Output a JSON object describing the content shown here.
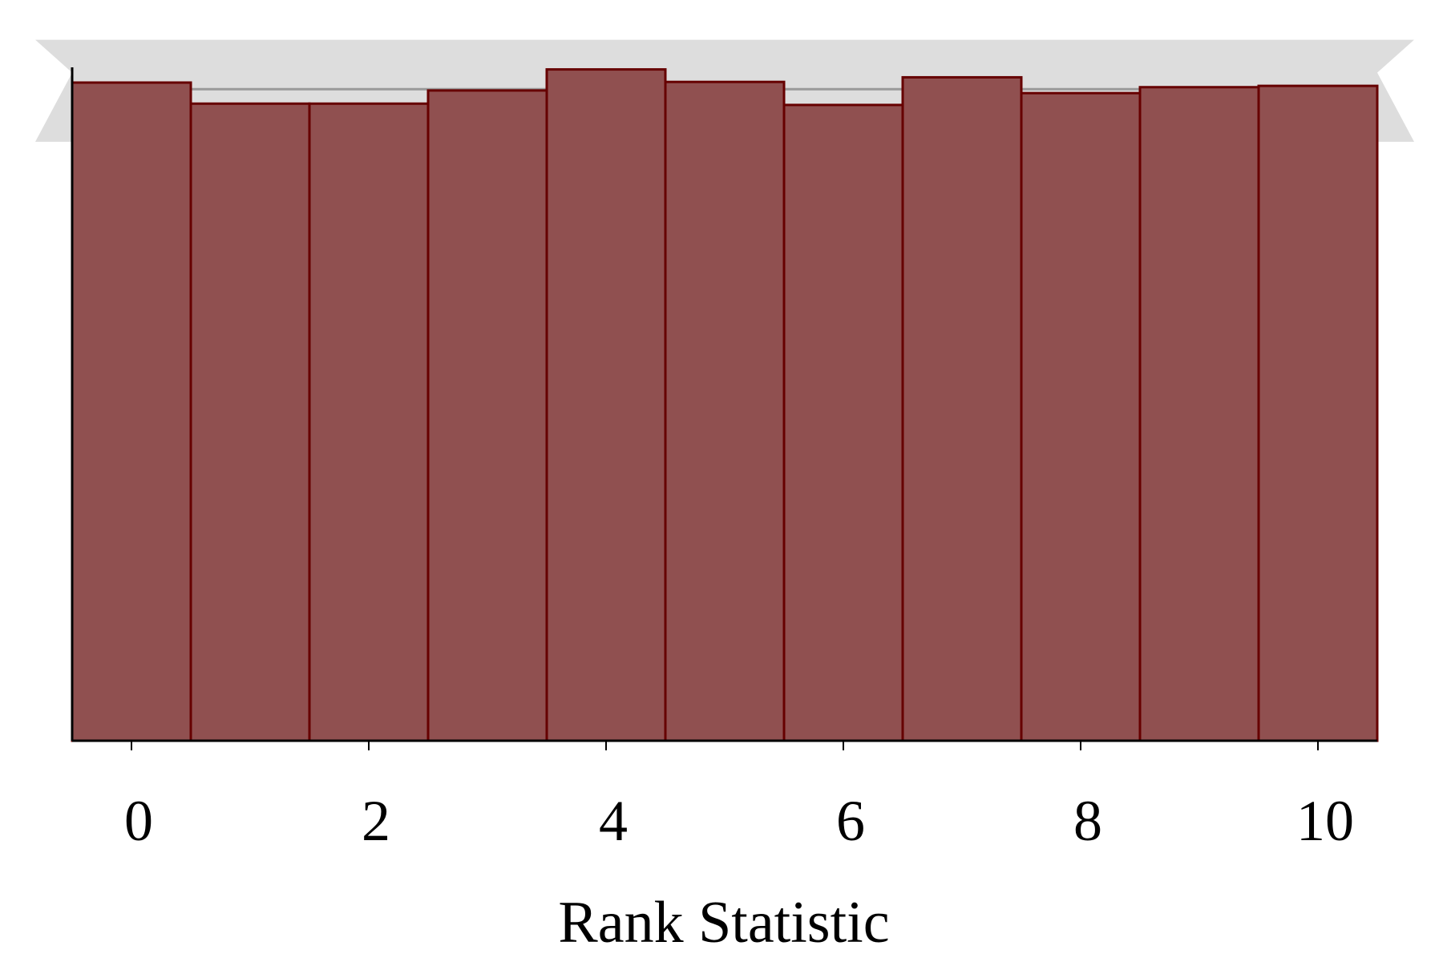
{
  "chart_data": {
    "type": "bar",
    "title": "",
    "xlabel": "Rank Statistic",
    "ylabel": "",
    "bins": [
      0,
      1,
      2,
      3,
      4,
      5,
      6,
      7,
      8,
      9,
      10
    ],
    "values": [
      100.0,
      96.8,
      96.8,
      98.8,
      102.0,
      100.1,
      96.6,
      100.8,
      98.4,
      99.3,
      99.5
    ],
    "xticks": [
      "0",
      "2",
      "4",
      "6",
      "8",
      "10"
    ],
    "xlim": [
      -0.5,
      10.5
    ],
    "ylim": [
      0,
      100
    ],
    "reference": {
      "expected": 99.0,
      "band_inner": [
        93.0,
        104.5
      ],
      "band_outer": [
        91.0,
        106.5
      ]
    },
    "grid": false,
    "colors": {
      "bar_fill": "#905050",
      "bar_edge": "#660000",
      "band": "#dddddd",
      "expected_line": "#999999",
      "axis": "#000000"
    }
  }
}
